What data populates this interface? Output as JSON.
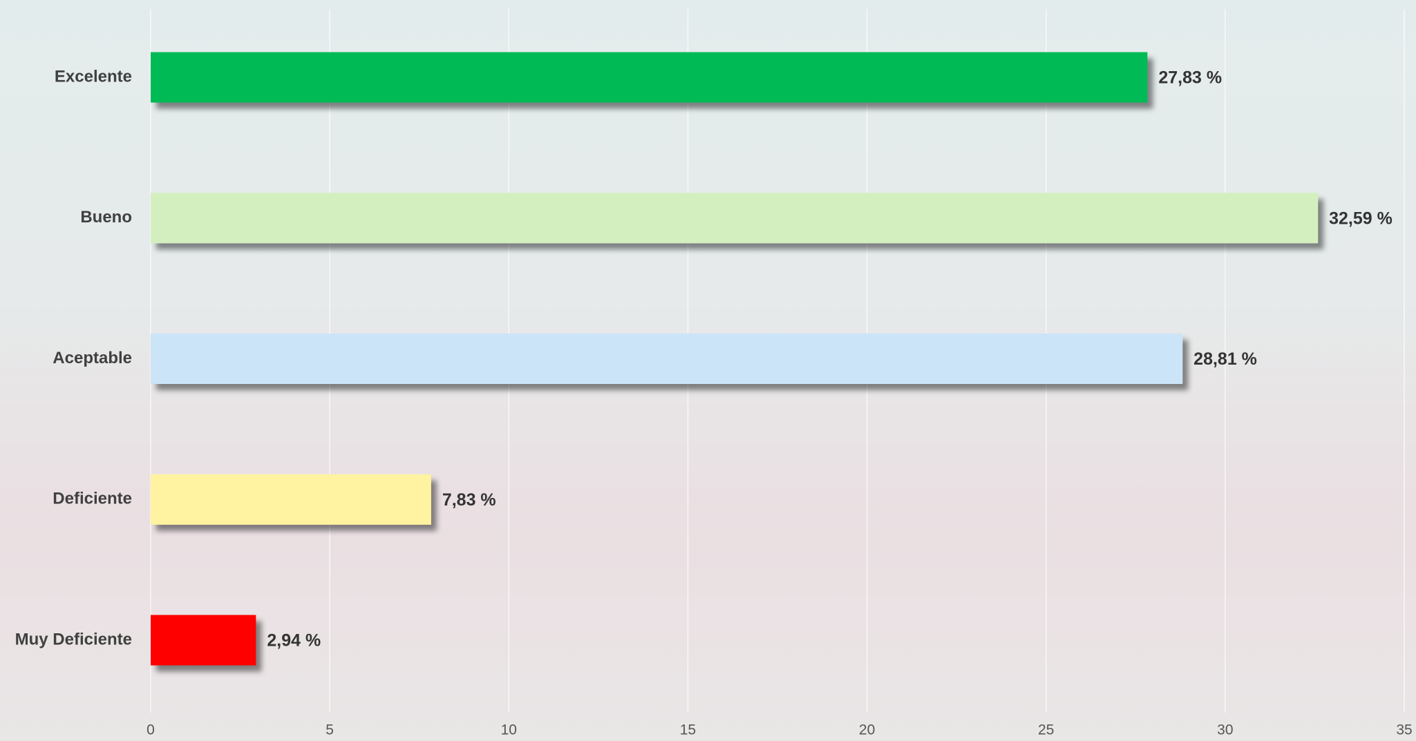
{
  "chart_data": {
    "type": "hbar",
    "categories": [
      "Excelente",
      "Bueno",
      "Aceptable",
      "Deficiente",
      "Muy Deficiente"
    ],
    "values": [
      27.83,
      32.59,
      28.81,
      7.83,
      2.94
    ],
    "value_labels": [
      "27,83 %",
      "32,59 %",
      "28,81 %",
      "7,83 %",
      "2,94 %"
    ],
    "colors": [
      "#05bb54",
      "#d4efbf",
      "#cce4f8",
      "#fff2a0",
      "#ff0000"
    ],
    "xlim": [
      0,
      35
    ],
    "xticks": [
      0,
      5,
      10,
      15,
      20,
      25,
      30,
      35
    ],
    "grid": true
  }
}
